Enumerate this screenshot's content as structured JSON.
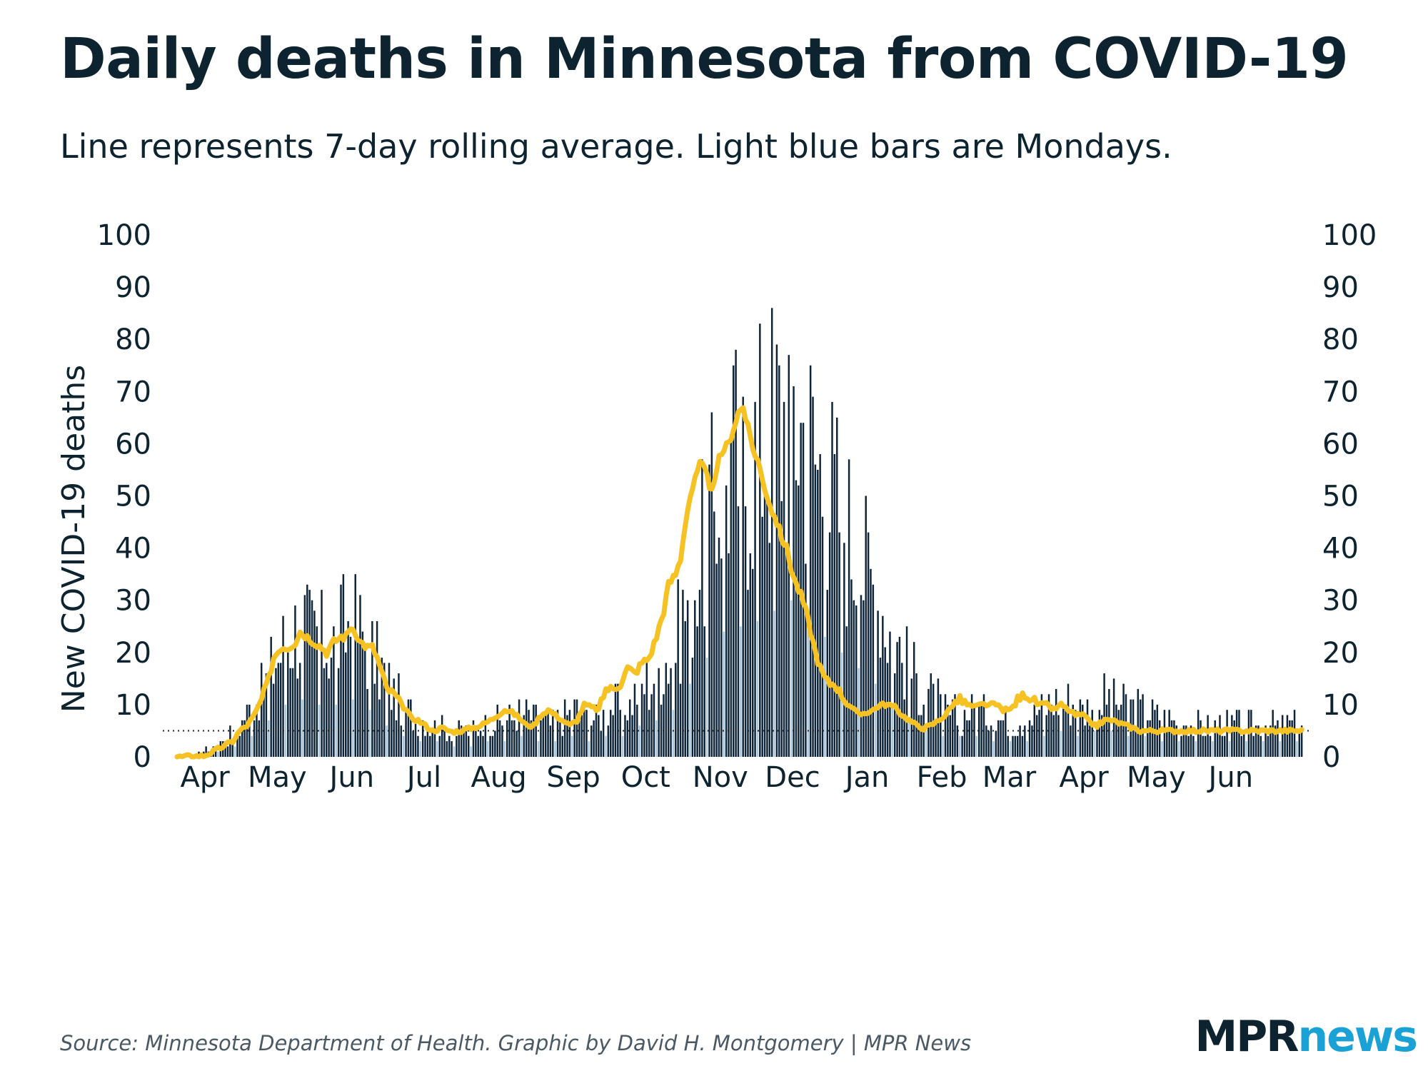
{
  "title": "Daily deaths in Minnesota from COVID-19",
  "subtitle": "Line represents 7-day rolling average. Light blue bars are Mondays.",
  "footer": "Source: Minnesota Department of Health. Graphic by David H. Montgomery | MPR News",
  "logo": {
    "part1": "MPR",
    "part2": "news"
  },
  "colors": {
    "bar": "#0d2438",
    "monday_bar": "#a9c6dc",
    "line": "#f6c223",
    "text": "#0d2430",
    "reference": "#222222"
  },
  "chart_data": {
    "type": "bar",
    "title": "Daily deaths in Minnesota from COVID-19",
    "ylabel": "New COVID-19 deaths",
    "xlabel": "",
    "ylim": [
      0,
      100
    ],
    "yticks": [
      0,
      10,
      20,
      30,
      40,
      50,
      60,
      70,
      80,
      90,
      100
    ],
    "months": [
      "Apr",
      "May",
      "Jun",
      "Jul",
      "Aug",
      "Sep",
      "Oct",
      "Nov",
      "Dec",
      "Jan",
      "Feb",
      "Mar",
      "Apr",
      "May",
      "Jun"
    ],
    "period": "2020-03-21 to 2021-06-30",
    "reference_line": 5,
    "anchors_bar": [
      [
        0,
        0
      ],
      [
        10,
        1
      ],
      [
        18,
        3
      ],
      [
        25,
        6
      ],
      [
        35,
        13
      ],
      [
        42,
        20
      ],
      [
        48,
        24
      ],
      [
        55,
        23
      ],
      [
        62,
        21
      ],
      [
        68,
        24
      ],
      [
        72,
        25
      ],
      [
        78,
        21
      ],
      [
        84,
        16
      ],
      [
        90,
        11
      ],
      [
        97,
        8
      ],
      [
        104,
        6
      ],
      [
        111,
        5
      ],
      [
        118,
        5
      ],
      [
        125,
        6
      ],
      [
        135,
        7
      ],
      [
        142,
        8
      ],
      [
        150,
        7
      ],
      [
        155,
        6
      ],
      [
        160,
        8
      ],
      [
        165,
        9
      ],
      [
        170,
        7
      ],
      [
        175,
        7
      ],
      [
        180,
        10
      ],
      [
        185,
        9
      ],
      [
        190,
        12
      ],
      [
        195,
        14
      ],
      [
        200,
        17
      ],
      [
        205,
        20
      ],
      [
        210,
        28
      ],
      [
        215,
        35
      ],
      [
        220,
        43
      ],
      [
        225,
        52
      ],
      [
        230,
        56
      ],
      [
        235,
        54
      ],
      [
        240,
        58
      ],
      [
        245,
        62
      ],
      [
        250,
        64
      ],
      [
        255,
        66
      ],
      [
        260,
        60
      ],
      [
        265,
        55
      ],
      [
        270,
        50
      ],
      [
        275,
        45
      ],
      [
        280,
        40
      ],
      [
        285,
        35
      ],
      [
        290,
        30
      ],
      [
        295,
        24
      ],
      [
        300,
        19
      ],
      [
        305,
        15
      ],
      [
        310,
        12
      ],
      [
        315,
        10
      ],
      [
        320,
        8
      ],
      [
        325,
        8
      ],
      [
        330,
        9
      ],
      [
        335,
        8
      ],
      [
        340,
        7
      ],
      [
        345,
        6
      ],
      [
        350,
        7
      ],
      [
        355,
        8
      ],
      [
        360,
        10
      ],
      [
        365,
        11
      ],
      [
        370,
        10
      ],
      [
        375,
        9
      ],
      [
        380,
        10
      ],
      [
        385,
        11
      ],
      [
        390,
        10
      ],
      [
        395,
        9
      ],
      [
        400,
        9
      ],
      [
        405,
        8
      ],
      [
        410,
        7
      ],
      [
        415,
        7
      ],
      [
        420,
        6
      ],
      [
        426,
        6
      ]
    ],
    "anchors_avg": [
      [
        0,
        0
      ],
      [
        10,
        0.2
      ],
      [
        14,
        1
      ],
      [
        18,
        2
      ],
      [
        22,
        3
      ],
      [
        25,
        5
      ],
      [
        28,
        6
      ],
      [
        31,
        8
      ],
      [
        34,
        11
      ],
      [
        37,
        15
      ],
      [
        39,
        19
      ],
      [
        42,
        21
      ],
      [
        45,
        21
      ],
      [
        48,
        22
      ],
      [
        50,
        24
      ],
      [
        53,
        23
      ],
      [
        56,
        22
      ],
      [
        59,
        21
      ],
      [
        61,
        20
      ],
      [
        64,
        22
      ],
      [
        67,
        23
      ],
      [
        69,
        23
      ],
      [
        71,
        25
      ],
      [
        73,
        24
      ],
      [
        75,
        22
      ],
      [
        78,
        21
      ],
      [
        80,
        21
      ],
      [
        82,
        19
      ],
      [
        84,
        16
      ],
      [
        86,
        13
      ],
      [
        89,
        12
      ],
      [
        92,
        10
      ],
      [
        94,
        9
      ],
      [
        96,
        7.5
      ],
      [
        99,
        7
      ],
      [
        102,
        6
      ],
      [
        105,
        5
      ],
      [
        109,
        5.5
      ],
      [
        113,
        4.8
      ],
      [
        117,
        5
      ],
      [
        121,
        5.5
      ],
      [
        125,
        6
      ],
      [
        129,
        7
      ],
      [
        132,
        8
      ],
      [
        135,
        9
      ],
      [
        138,
        8.5
      ],
      [
        141,
        7.5
      ],
      [
        144,
        6
      ],
      [
        147,
        6
      ],
      [
        150,
        8
      ],
      [
        153,
        9
      ],
      [
        156,
        8
      ],
      [
        159,
        7
      ],
      [
        162,
        6
      ],
      [
        165,
        7
      ],
      [
        168,
        10
      ],
      [
        171,
        9.5
      ],
      [
        174,
        9
      ],
      [
        177,
        13
      ],
      [
        180,
        13
      ],
      [
        183,
        14
      ],
      [
        186,
        17
      ],
      [
        189,
        16
      ],
      [
        192,
        18
      ],
      [
        195,
        19
      ],
      [
        198,
        23
      ],
      [
        201,
        28
      ],
      [
        203,
        33
      ],
      [
        206,
        35
      ],
      [
        208,
        38
      ],
      [
        210,
        45
      ],
      [
        212,
        50
      ],
      [
        214,
        53
      ],
      [
        216,
        56
      ],
      [
        218,
        55
      ],
      [
        220,
        52
      ],
      [
        222,
        52
      ],
      [
        224,
        57
      ],
      [
        226,
        59
      ],
      [
        228,
        60
      ],
      [
        230,
        63
      ],
      [
        232,
        66
      ],
      [
        234,
        67
      ],
      [
        236,
        63
      ],
      [
        238,
        59
      ],
      [
        240,
        57
      ],
      [
        242,
        53
      ],
      [
        244,
        50
      ],
      [
        246,
        47
      ],
      [
        248,
        45
      ],
      [
        250,
        42
      ],
      [
        252,
        40
      ],
      [
        254,
        36
      ],
      [
        256,
        33
      ],
      [
        258,
        31
      ],
      [
        260,
        28
      ],
      [
        262,
        24
      ],
      [
        264,
        20
      ],
      [
        266,
        17
      ],
      [
        268,
        15
      ],
      [
        270,
        14
      ],
      [
        272,
        14
      ],
      [
        274,
        12.5
      ],
      [
        276,
        11
      ],
      [
        278,
        10
      ],
      [
        280,
        9
      ],
      [
        282,
        8
      ],
      [
        285,
        8.5
      ],
      [
        288,
        9
      ],
      [
        291,
        10
      ],
      [
        294,
        10
      ],
      [
        297,
        9.5
      ],
      [
        300,
        8
      ],
      [
        303,
        7
      ],
      [
        306,
        6
      ],
      [
        309,
        5.5
      ],
      [
        312,
        6
      ],
      [
        315,
        7
      ],
      [
        318,
        8
      ],
      [
        321,
        10
      ],
      [
        324,
        11
      ],
      [
        327,
        10
      ],
      [
        330,
        9.5
      ],
      [
        333,
        10
      ],
      [
        336,
        10
      ],
      [
        339,
        10
      ],
      [
        342,
        9
      ],
      [
        345,
        9
      ],
      [
        348,
        11
      ],
      [
        351,
        12
      ],
      [
        354,
        11
      ],
      [
        357,
        10
      ],
      [
        360,
        10
      ],
      [
        363,
        9
      ],
      [
        366,
        10
      ],
      [
        369,
        9
      ],
      [
        372,
        8
      ],
      [
        375,
        8
      ],
      [
        378,
        6.5
      ],
      [
        381,
        6
      ],
      [
        384,
        7
      ],
      [
        387,
        7
      ],
      [
        390,
        6.5
      ],
      [
        393,
        6
      ],
      [
        396,
        5.5
      ],
      [
        399,
        5
      ]
    ]
  }
}
